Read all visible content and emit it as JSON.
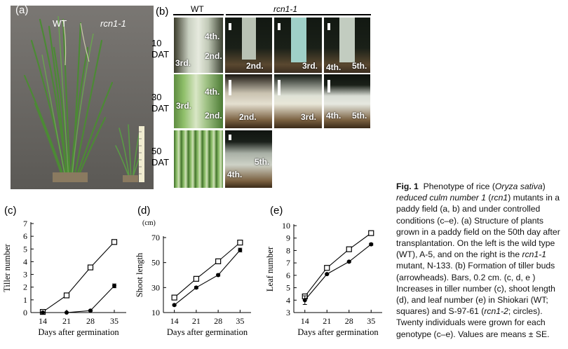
{
  "panel_a": {
    "label": "(a)",
    "wt_label": "WT",
    "mutant_label": "rcn1-1"
  },
  "panel_b": {
    "label": "(b)",
    "wt_header": "WT",
    "mutant_header": "rcn1-1",
    "rows": [
      {
        "day": "10",
        "unit": "DAT"
      },
      {
        "day": "30",
        "unit": "DAT"
      },
      {
        "day": "50",
        "unit": "DAT"
      }
    ],
    "tags": {
      "r1c1_a": "4th.",
      "r1c1_b": "2nd.",
      "r1c1_c": "3rd.",
      "r1c2": "2nd.",
      "r1c3": "3rd.",
      "r1c4_a": "4th.",
      "r1c4_b": "5th.",
      "r2c1_a": "4th.",
      "r2c1_b": "3rd.",
      "r2c1_c": "2nd.",
      "r2c2": "2nd.",
      "r2c3": "3rd.",
      "r2c4_a": "4th.",
      "r2c4_b": "5th.",
      "r3c2_a": "5th.",
      "r3c2_b": "4th."
    }
  },
  "caption": {
    "fig": "Fig. 1",
    "t1": "Phenotype of rice (",
    "species": "Oryza sativa",
    "t2": ")",
    "mutant_name": "reduced culm number 1",
    "t3": " (",
    "gene": "rcn1",
    "t4": ") mutants in a paddy field (a, b) and under controlled conditions (c–e). (a) Structure of plants grown in a paddy field on the 50th day after transplantation. On the left is the wild type (WT), A-5, and on the right is the ",
    "allele1": "rcn1-1",
    "t5": " mutant, N-133. (b) Formation of tiller buds (arrowheads). Bars, 0.2 cm. (c, d, e ) Increases in tiller number (c), shoot length (d), and leaf number (e) in Shiokari (WT; squares) and S-97-61 (",
    "allele2": "rcn1-2",
    "t6": "; circles). Twenty individuals were grown for each genotype (c–e). Values are means ± SE."
  },
  "colors": {
    "field_bg": "#6e6b66",
    "leaf": "#4f8a3a",
    "dark_bg": "#1c1c1a",
    "stem": "#d8ddd0"
  },
  "chart_data": [
    {
      "type": "line",
      "panel": "(c)",
      "ylabel": "Tiller number",
      "xlabel": "Days after germination",
      "x": [
        14,
        21,
        28,
        35
      ],
      "ylim": [
        0,
        7
      ],
      "yticks": [
        0,
        1,
        2,
        3,
        4,
        5,
        6,
        7
      ],
      "series": [
        {
          "marker": "square",
          "values": [
            0.05,
            1.35,
            3.55,
            5.55
          ],
          "err": [
            0.05,
            0.1,
            0.12,
            0.15
          ]
        },
        {
          "marker": "circle",
          "values": [
            0.0,
            0.0,
            0.15,
            2.1
          ],
          "err": [
            0.0,
            0.0,
            0.05,
            0.15
          ]
        }
      ]
    },
    {
      "type": "line",
      "panel": "(d)",
      "ylabel": "Shoot length",
      "yunit": "(cm)",
      "xlabel": "Days after germination",
      "x": [
        14,
        21,
        28,
        35
      ],
      "ylim": [
        10,
        70
      ],
      "yticks": [
        10,
        30,
        50,
        70
      ],
      "series": [
        {
          "marker": "square",
          "values": [
            22,
            37,
            51,
            66
          ],
          "err": [
            0.8,
            0.8,
            0.8,
            1.0
          ]
        },
        {
          "marker": "circle",
          "values": [
            16,
            30,
            40,
            60
          ],
          "err": [
            0.6,
            0.8,
            0.8,
            1.5
          ]
        }
      ]
    },
    {
      "type": "line",
      "panel": "(e)",
      "ylabel": "Leaf number",
      "xlabel": "Days after germination",
      "x": [
        14,
        21,
        28,
        35
      ],
      "ylim": [
        3,
        10
      ],
      "yticks": [
        3,
        4,
        5,
        6,
        7,
        8,
        9,
        10
      ],
      "series": [
        {
          "marker": "square",
          "values": [
            4.3,
            6.6,
            8.1,
            9.4
          ],
          "err": [
            0.05,
            0.05,
            0.05,
            0.08
          ]
        },
        {
          "marker": "circle",
          "values": [
            4.0,
            6.1,
            7.1,
            8.5
          ],
          "err": [
            0.35,
            0.05,
            0.05,
            0.08
          ]
        }
      ]
    }
  ]
}
